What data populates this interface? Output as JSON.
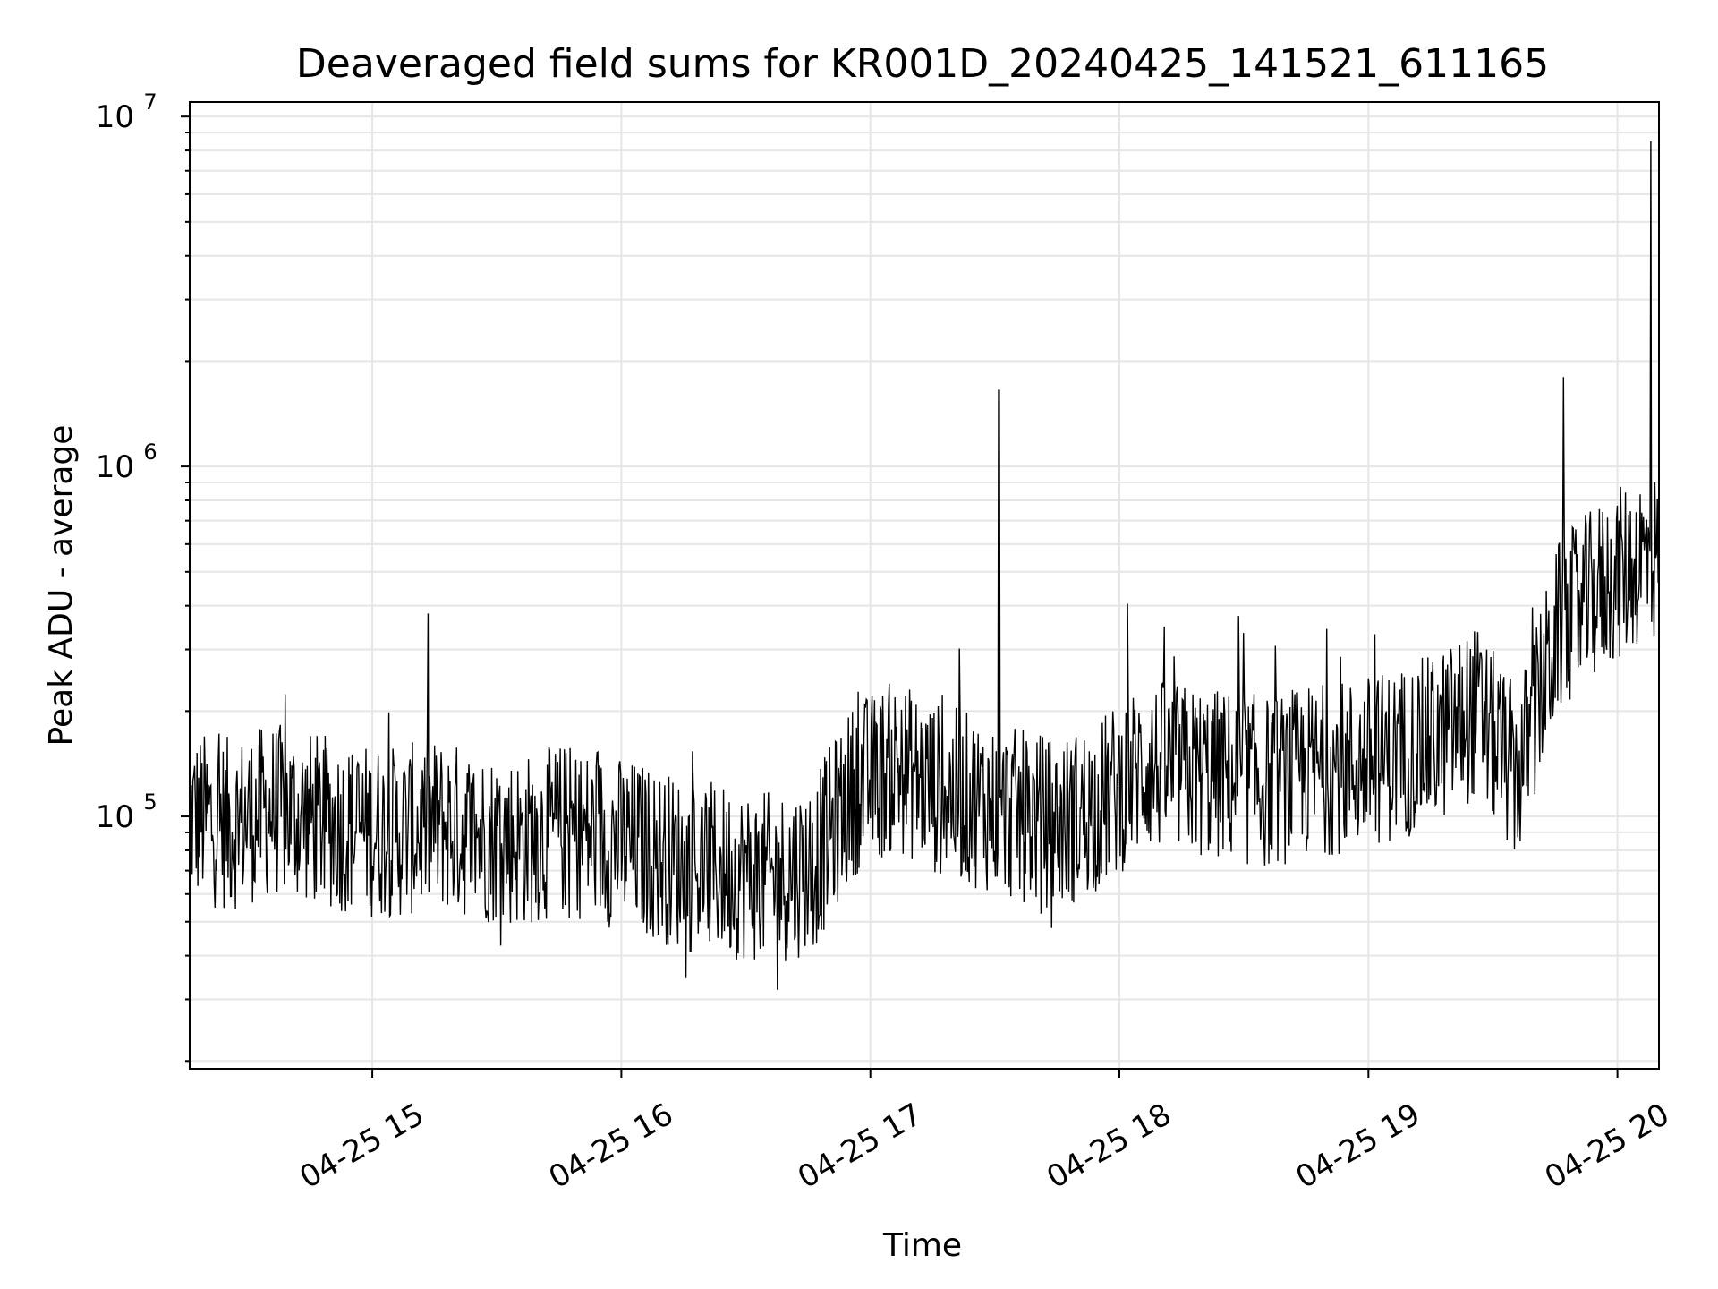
{
  "chart_data": {
    "type": "line",
    "title": "Deaveraged field sums for KR001D_20240425_141521_611165",
    "xlabel": "Time",
    "ylabel": "Peak ADU - average",
    "yscale": "log",
    "ylim": [
      19000,
      11000000
    ],
    "xlim": [
      "2024-04-25 14:16",
      "2024-04-25 20:10"
    ],
    "xticks": [
      "04-25 15",
      "04-25 16",
      "04-25 17",
      "04-25 18",
      "04-25 19",
      "04-25 20"
    ],
    "yticks": [
      {
        "base": "10",
        "exp": "5",
        "value": 100000
      },
      {
        "base": "10",
        "exp": "6",
        "value": 1000000
      },
      {
        "base": "10",
        "exp": "7",
        "value": 10000000
      }
    ],
    "grid": true,
    "line_color": "#000000",
    "grid_color": "#e6e6e6",
    "series": [
      {
        "x": [
          "14:16",
          "14:26",
          "14:36",
          "14:46",
          "14:56",
          "15:06",
          "15:16",
          "15:26",
          "15:36",
          "15:46",
          "15:56",
          "16:06",
          "16:16",
          "16:26",
          "16:36",
          "16:46",
          "16:56",
          "17:06",
          "17:16",
          "17:26",
          "17:36",
          "17:46",
          "17:56",
          "18:06",
          "18:16",
          "18:26",
          "18:36",
          "18:46",
          "18:56",
          "19:06",
          "19:16",
          "19:26",
          "19:36",
          "19:46",
          "19:56",
          "20:06"
        ],
        "y": [
          100000,
          95000,
          105000,
          98000,
          92000,
          90000,
          95000,
          88000,
          85000,
          92000,
          86000,
          80000,
          72000,
          70000,
          66000,
          72000,
          120000,
          140000,
          120000,
          110000,
          100000,
          95000,
          110000,
          140000,
          135000,
          130000,
          125000,
          135000,
          140000,
          150000,
          165000,
          200000,
          130000,
          350000,
          450000,
          550000
        ]
      }
    ],
    "spikes": [
      {
        "x": "17:31",
        "y": 1650000
      },
      {
        "x": "19:47",
        "y": 1800000
      },
      {
        "x": "20:08",
        "y": 8500000
      }
    ]
  }
}
